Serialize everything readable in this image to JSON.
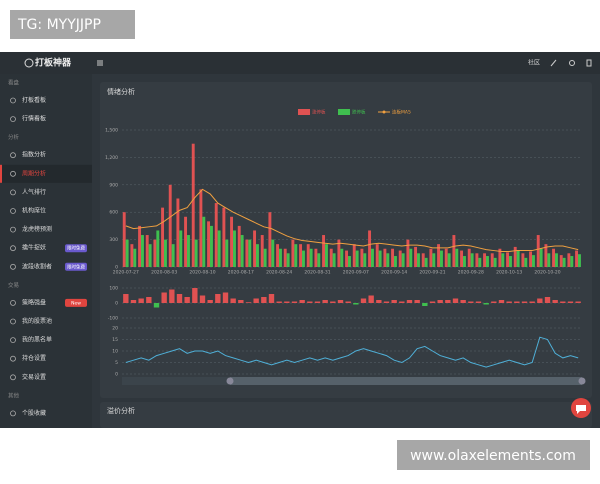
{
  "watermark_top": "TG: MYYJJPP",
  "watermark_bottom": "www.olaxelements.com",
  "header": {
    "logo": "打板神器",
    "community": "社区"
  },
  "sidebar": {
    "sections": [
      {
        "label": "看盘",
        "items": [
          {
            "label": "打板看板"
          },
          {
            "label": "行情看板"
          }
        ]
      },
      {
        "label": "分析",
        "items": [
          {
            "label": "指数分析"
          },
          {
            "label": "周期分析",
            "active": true
          },
          {
            "label": "人气排行"
          },
          {
            "label": "机构席位"
          },
          {
            "label": "龙虎榜预测"
          },
          {
            "label": "擒牛捉妖",
            "badge": "限时免费"
          },
          {
            "label": "波段收割者",
            "badge": "限时免费"
          }
        ]
      },
      {
        "label": "交易",
        "items": [
          {
            "label": "策略强盘",
            "badge": "New",
            "badge_color": "#e0453f"
          },
          {
            "label": "我的股票池"
          },
          {
            "label": "我的黑名单"
          },
          {
            "label": "持仓设置"
          },
          {
            "label": "交易设置"
          }
        ]
      },
      {
        "label": "其他",
        "items": [
          {
            "label": "个股收藏"
          }
        ]
      }
    ]
  },
  "cards": [
    {
      "title": "情绪分析"
    },
    {
      "title": "溢价分析"
    }
  ],
  "chart_data": [
    {
      "type": "bar",
      "grid": true,
      "categories": [
        "2020-07-27",
        null,
        null,
        null,
        null,
        "2020-08-03",
        null,
        null,
        null,
        null,
        "2020-08-10",
        null,
        null,
        null,
        null,
        "2020-08-17",
        null,
        null,
        null,
        null,
        "2020-08-24",
        null,
        null,
        null,
        null,
        "2020-08-31",
        null,
        null,
        null,
        null,
        "2020-09-07",
        null,
        null,
        null,
        null,
        "2020-09-14",
        null,
        null,
        null,
        null,
        "2020-09-21",
        null,
        null,
        null,
        null,
        "2020-09-28",
        null,
        null,
        null,
        null,
        "2020-10-13",
        null,
        null,
        null,
        null,
        "2020-10-20",
        null,
        null,
        null,
        null
      ],
      "ylim": [
        0,
        1500
      ],
      "yticks": [
        0,
        300,
        600,
        900,
        {
          "value": 1200,
          "label": "1,200"
        },
        {
          "value": 1500,
          "label": "1,500"
        }
      ],
      "series": [
        {
          "name": "涨停板",
          "color": "#e05252",
          "values": [
            600,
            250,
            450,
            350,
            300,
            650,
            900,
            750,
            550,
            1350,
            850,
            500,
            700,
            650,
            550,
            450,
            300,
            400,
            350,
            600,
            250,
            200,
            300,
            250,
            250,
            200,
            350,
            200,
            300,
            180,
            250,
            200,
            400,
            250,
            200,
            200,
            180,
            300,
            220,
            150,
            200,
            250,
            200,
            350,
            180,
            200,
            150,
            150,
            150,
            200,
            160,
            220,
            150,
            170,
            350,
            250,
            200,
            130,
            150,
            180
          ]
        },
        {
          "name": "跌停板",
          "color": "#3fbf4f",
          "values": [
            300,
            200,
            350,
            250,
            400,
            300,
            250,
            400,
            350,
            300,
            550,
            450,
            400,
            300,
            400,
            350,
            300,
            250,
            200,
            300,
            200,
            150,
            250,
            180,
            200,
            150,
            250,
            150,
            200,
            120,
            180,
            150,
            200,
            180,
            150,
            120,
            150,
            200,
            150,
            100,
            150,
            180,
            150,
            200,
            120,
            150,
            100,
            120,
            100,
            150,
            120,
            180,
            100,
            130,
            200,
            150,
            150,
            100,
            120,
            140
          ]
        },
        {
          "name": "连板MA5",
          "color": "#f0a040",
          "type": "line",
          "values": [
            450,
            420,
            430,
            440,
            450,
            500,
            560,
            620,
            650,
            760,
            850,
            800,
            700,
            650,
            600,
            560,
            520,
            480,
            440,
            420,
            380,
            340,
            310,
            290,
            280,
            270,
            260,
            250,
            260,
            250,
            240,
            230,
            250,
            260,
            250,
            240,
            230,
            240,
            240,
            230,
            210,
            210,
            210,
            230,
            240,
            230,
            210,
            190,
            180,
            170,
            170,
            180,
            180,
            180,
            200,
            220,
            230,
            230,
            210,
            190
          ]
        }
      ]
    },
    {
      "type": "bar",
      "grid": true,
      "ylim": [
        -100,
        100
      ],
      "yticks": [
        -100,
        0,
        100
      ],
      "color_up": "#e05252",
      "color_down": "#3fbf4f",
      "values": [
        60,
        20,
        30,
        40,
        -30,
        70,
        90,
        60,
        40,
        100,
        50,
        20,
        60,
        70,
        30,
        20,
        5,
        30,
        40,
        60,
        10,
        10,
        10,
        20,
        10,
        10,
        20,
        10,
        20,
        10,
        -10,
        30,
        50,
        20,
        10,
        20,
        10,
        20,
        20,
        -20,
        10,
        20,
        20,
        30,
        20,
        10,
        10,
        -10,
        10,
        20,
        10,
        10,
        10,
        10,
        30,
        40,
        20,
        10,
        10,
        10
      ]
    },
    {
      "type": "line",
      "grid": true,
      "ylim": [
        0,
        20
      ],
      "yticks": [
        0,
        5,
        10,
        15,
        20
      ],
      "color": "#4fb0d8",
      "values": [
        5,
        6,
        7,
        6,
        8,
        9,
        10,
        11,
        9,
        10,
        10,
        9,
        10,
        8,
        7,
        6,
        5,
        6,
        5,
        4,
        5,
        6,
        5,
        6,
        7,
        6,
        7,
        6,
        7,
        8,
        10,
        11,
        10,
        9,
        8,
        6,
        5,
        7,
        11,
        12,
        10,
        8,
        7,
        6,
        7,
        5,
        4,
        3,
        4,
        5,
        6,
        5,
        4,
        5,
        16,
        15,
        9,
        7,
        8,
        7
      ]
    }
  ]
}
